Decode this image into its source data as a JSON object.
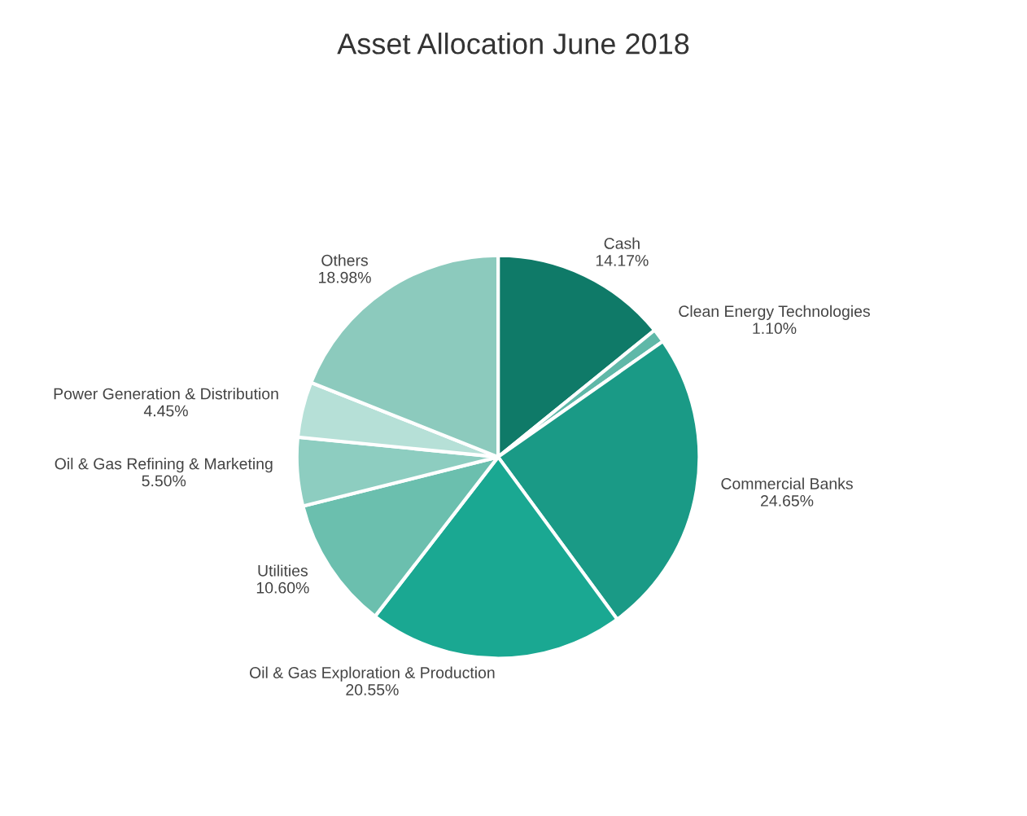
{
  "chart_data": {
    "type": "pie",
    "title": "Asset Allocation June 2018",
    "categories": [
      "Cash",
      "Clean Energy Technologies",
      "Commercial Banks",
      "Oil & Gas Exploration & Production",
      "Utilities",
      "Oil & Gas Refining & Marketing",
      "Power Generation & Distribution",
      "Others"
    ],
    "values": [
      14.17,
      1.1,
      24.65,
      20.55,
      10.6,
      5.5,
      4.45,
      18.98
    ],
    "colors": [
      "#0f7a68",
      "#5fb8a8",
      "#1a9a86",
      "#1aa892",
      "#6bbfae",
      "#8dcdc0",
      "#b6e0d7",
      "#8ccabd"
    ],
    "value_labels": [
      "14.17%",
      "1.10%",
      "24.65%",
      "20.55%",
      "10.60%",
      "5.50%",
      "4.45%",
      "18.98%"
    ]
  }
}
